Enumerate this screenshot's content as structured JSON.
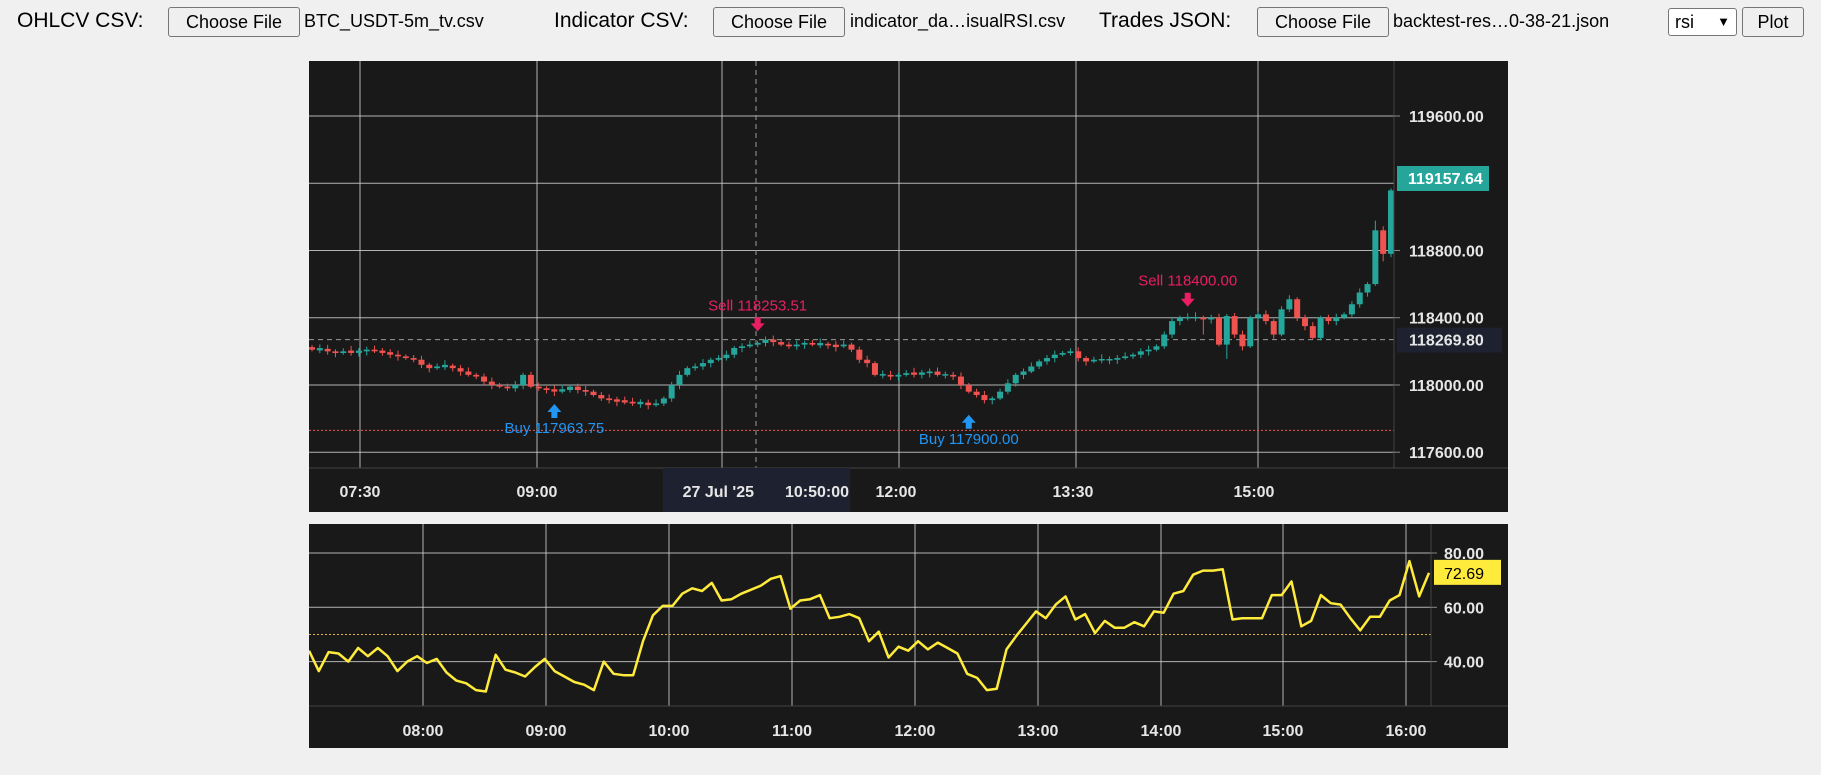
{
  "toolbar": {
    "ohlcv_label": "OHLCV CSV:",
    "ohlcv_button": "Choose File",
    "ohlcv_file": "BTC_USDT-5m_tv.csv",
    "indicator_label": "Indicator CSV:",
    "indicator_button": "Choose File",
    "indicator_file": "indicator_da…isualRSI.csv",
    "trades_label": "Trades JSON:",
    "trades_button": "Choose File",
    "trades_file": "backtest-res…0-38-21.json",
    "indicator_select": "rsi",
    "plot_button": "Plot"
  },
  "colors": {
    "up": "#26a69a",
    "down": "#ef5350",
    "buy": "#2196f3",
    "sell": "#e91e63",
    "rsi_line": "#ffeb3b",
    "background": "#191919"
  },
  "chart_data": [
    {
      "type": "candlestick",
      "time_axis": [
        "07:30",
        "09:00",
        "27 Jul '25",
        "10:50:00",
        "12:00",
        "13:30",
        "15:00"
      ],
      "price_ticks": [
        117600,
        118000,
        118400,
        118800,
        119600
      ],
      "price_range": [
        117500,
        119800
      ],
      "last_price_label": "119157.64",
      "crosshair_price_label": "118269.80",
      "crosshair_price": 118269.8,
      "red_line_price": 117730,
      "close": [
        118210,
        118215,
        118200,
        118190,
        118200,
        118195,
        118200,
        118210,
        118200,
        118195,
        118180,
        118170,
        118160,
        118150,
        118120,
        118100,
        118110,
        118115,
        118100,
        118080,
        118060,
        118050,
        118020,
        118000,
        117990,
        117980,
        118000,
        118060,
        117990,
        117980,
        117970,
        117965,
        117970,
        117990,
        117970,
        117960,
        117940,
        117920,
        117910,
        117905,
        117900,
        117890,
        117895,
        117880,
        117890,
        117920,
        118000,
        118060,
        118100,
        118110,
        118130,
        118150,
        118160,
        118180,
        118220,
        118230,
        118240,
        118250,
        118270,
        118255,
        118240,
        118230,
        118240,
        118250,
        118240,
        118245,
        118235,
        118230,
        118240,
        118210,
        118150,
        118130,
        118060,
        118060,
        118050,
        118060,
        118070,
        118065,
        118070,
        118080,
        118060,
        118060,
        118050,
        118000,
        117960,
        117940,
        117910,
        117920,
        117960,
        118010,
        118060,
        118080,
        118110,
        118140,
        118160,
        118180,
        118190,
        118200,
        118160,
        118140,
        118150,
        118150,
        118150,
        118160,
        118170,
        118180,
        118200,
        118210,
        118230,
        118300,
        118380,
        118400,
        118400,
        118400,
        118390,
        118400,
        118240,
        118410,
        118300,
        118230,
        118400,
        118420,
        118380,
        118300,
        118450,
        118510,
        118400,
        118350,
        118280,
        118400,
        118380,
        118400,
        118420,
        118480,
        118550,
        118600,
        118920,
        118780,
        119157.64
      ],
      "trades": [
        {
          "side": "Buy",
          "label": "Buy 117963.75",
          "price": 117963.75,
          "bar": 31
        },
        {
          "side": "Sell",
          "label": "Sell 118253.51",
          "price": 118253.51,
          "bar": 57
        },
        {
          "side": "Buy",
          "label": "Buy 117900.00",
          "price": 117900.0,
          "bar": 84
        },
        {
          "side": "Sell",
          "label": "Sell 118400.00",
          "price": 118400.0,
          "bar": 112
        }
      ]
    },
    {
      "type": "line",
      "title": "rsi",
      "series": [
        {
          "name": "rsi",
          "values": [
            44,
            36.5,
            43.5,
            43,
            40,
            45,
            42,
            45,
            42,
            36.5,
            40,
            42,
            39.5,
            41,
            36,
            33,
            32,
            29.5,
            29,
            42.5,
            37,
            36,
            34.5,
            38,
            41,
            36.5,
            34.5,
            32.5,
            31.5,
            29.5,
            40,
            35.5,
            35,
            35,
            47.5,
            57,
            60.5,
            60.5,
            65,
            67,
            66,
            69,
            62.5,
            63,
            65,
            66.5,
            68,
            70.5,
            71.5,
            59.5,
            62.5,
            63,
            64.5,
            56,
            56.5,
            57.5,
            56,
            47.5,
            51,
            41.5,
            45.5,
            44,
            47.5,
            44.5,
            47,
            45,
            43,
            35.5,
            34,
            29.5,
            30,
            44.5,
            49.5,
            54,
            58.5,
            56,
            61,
            64,
            55.5,
            57.5,
            50.5,
            55,
            52.5,
            52.5,
            54.5,
            53,
            58.5,
            58,
            65,
            66,
            72,
            73.5,
            73.5,
            74,
            55.5,
            56,
            56,
            56,
            64.5,
            64.5,
            69.5,
            53,
            55,
            64.5,
            61.5,
            61,
            56,
            51.5,
            56.5,
            56.5,
            62.5,
            64.5,
            77,
            64,
            72.69
          ]
        }
      ],
      "x_ticks": [
        "08:00",
        "09:00",
        "10:00",
        "11:00",
        "12:00",
        "13:00",
        "14:00",
        "15:00",
        "16:00"
      ],
      "y_ticks": [
        40,
        60,
        80
      ],
      "ylim": [
        24,
        84
      ],
      "reference_line": 50,
      "last_value_label": "72.69"
    }
  ]
}
